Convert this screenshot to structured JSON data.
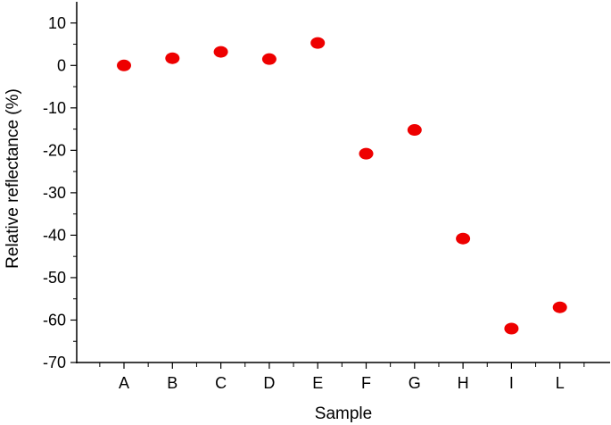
{
  "chart_data": {
    "type": "scatter",
    "xlabel": "Sample",
    "ylabel": "Relative reflectance (%)",
    "categories": [
      "A",
      "B",
      "C",
      "D",
      "E",
      "F",
      "G",
      "H",
      "I",
      "L"
    ],
    "values": [
      0,
      1.7,
      3.2,
      1.5,
      5.3,
      -20.8,
      -15.2,
      -40.8,
      -62.0,
      -57.0
    ],
    "ylim": [
      -70,
      15
    ],
    "yticks": [
      10,
      0,
      -10,
      -20,
      -30,
      -40,
      -50,
      -60,
      -70
    ],
    "ytick_labels": [
      "10",
      "0",
      "-10",
      "-20",
      "-30",
      "-40",
      "-50",
      "-60",
      "-70"
    ],
    "grid": false,
    "marker_color": "#ee0000"
  }
}
